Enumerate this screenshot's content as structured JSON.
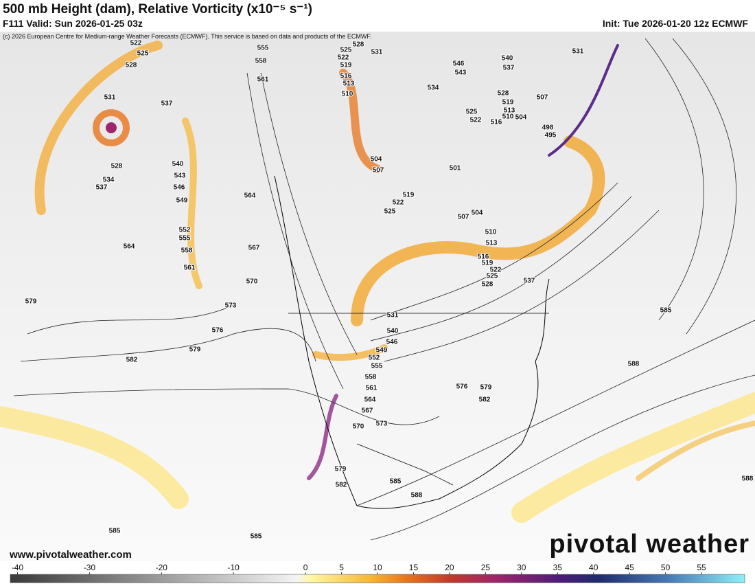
{
  "header": {
    "title": "500 mb Height (dam), Relative Vorticity (x10⁻⁵ s⁻¹)",
    "valid": "F111 Valid: Sun 2026-01-25 03z",
    "init": "Init: Tue 2026-01-20 12z ECMWF",
    "copyright": "(c) 2026 European Centre for Medium-range Weather Forecasts (ECMWF). This service is based on data and products of the ECMWF."
  },
  "contour_labels": [
    522,
    525,
    528,
    531,
    528,
    534,
    537,
    537,
    540,
    543,
    546,
    549,
    552,
    555,
    558,
    561,
    564,
    567,
    570,
    573,
    576,
    579,
    579,
    582,
    555,
    558,
    561,
    564,
    525,
    528,
    531,
    522,
    519,
    516,
    513,
    510,
    504,
    507,
    519,
    522,
    525,
    534,
    546,
    543,
    540,
    537,
    531,
    528,
    519,
    513,
    510,
    507,
    504,
    498,
    495,
    525,
    522,
    516,
    501,
    504,
    507,
    510,
    513,
    516,
    519,
    522,
    525,
    528,
    537,
    531,
    540,
    546,
    549,
    552,
    555,
    558,
    561,
    564,
    567,
    570,
    573,
    576,
    579,
    582,
    585,
    588,
    579,
    582,
    585,
    588,
    585,
    585,
    588
  ],
  "footer": {
    "website": "www.pivotalweather.com",
    "brand": "pivotal weather"
  },
  "colorbar": {
    "lim": [
      -41,
      61
    ],
    "ticks": [
      -40,
      -30,
      -20,
      -10,
      0,
      5,
      10,
      15,
      20,
      25,
      30,
      35,
      40,
      45,
      50,
      55
    ]
  }
}
